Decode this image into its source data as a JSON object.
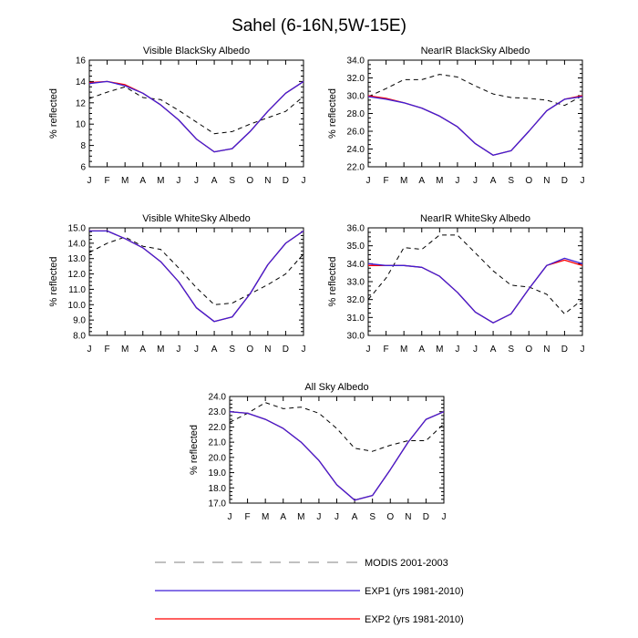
{
  "figure": {
    "title": "Sahel (6-16N,5W-15E)"
  },
  "colors": {
    "modis": "#000000",
    "exp1": "#3d1fd6",
    "exp2": "#ff0000",
    "legend_modis": "#9a9a9a",
    "legend_exp1": "#3d1fd6",
    "legend_exp2": "#ff0000"
  },
  "legend": {
    "items": [
      {
        "label": "MODIS 2001-2003",
        "style": "dashed",
        "series": "modis"
      },
      {
        "label": "EXP1 (yrs 1981-2010)",
        "style": "solid",
        "series": "exp1"
      },
      {
        "label": "EXP2 (yrs 1981-2010)",
        "style": "solid",
        "series": "exp2"
      }
    ]
  },
  "chart_data": [
    {
      "type": "line",
      "title": "Visible BlackSky Albedo",
      "xlabel": "",
      "ylabel": "% reflected",
      "categories": [
        "J",
        "F",
        "M",
        "A",
        "M",
        "J",
        "J",
        "A",
        "S",
        "O",
        "N",
        "D",
        "J"
      ],
      "ylim": [
        6,
        16
      ],
      "yticks": [
        "6",
        "8",
        "10",
        "12",
        "14",
        "16"
      ],
      "series": [
        {
          "name": "MODIS 2001-2003",
          "key": "modis",
          "style": "dashed",
          "values": [
            12.4,
            13.0,
            13.5,
            12.5,
            12.3,
            11.3,
            10.2,
            9.1,
            9.3,
            10.0,
            10.6,
            11.2,
            12.6
          ]
        },
        {
          "name": "EXP1 (yrs 1981-2010)",
          "key": "exp1",
          "style": "solid",
          "values": [
            13.8,
            14.0,
            13.6,
            12.9,
            11.8,
            10.4,
            8.6,
            7.4,
            7.7,
            9.3,
            11.2,
            12.9,
            14.0
          ]
        },
        {
          "name": "EXP2 (yrs 1981-2010)",
          "key": "exp2",
          "style": "solid",
          "values": [
            13.9,
            14.0,
            13.7,
            12.9,
            11.8,
            10.4,
            8.6,
            7.4,
            7.7,
            9.3,
            11.2,
            12.9,
            14.0
          ]
        }
      ]
    },
    {
      "type": "line",
      "title": "NearIR BlackSky Albedo",
      "xlabel": "",
      "ylabel": "% reflected",
      "categories": [
        "J",
        "F",
        "M",
        "A",
        "M",
        "J",
        "J",
        "A",
        "S",
        "O",
        "N",
        "D",
        "J"
      ],
      "ylim": [
        22,
        34
      ],
      "yticks": [
        "22.0",
        "24.0",
        "26.0",
        "28.0",
        "30.0",
        "32.0",
        "34.0"
      ],
      "series": [
        {
          "name": "MODIS 2001-2003",
          "key": "modis",
          "style": "dashed",
          "values": [
            29.9,
            30.8,
            31.8,
            31.8,
            32.4,
            32.1,
            31.1,
            30.2,
            29.8,
            29.7,
            29.5,
            28.9,
            30.0
          ]
        },
        {
          "name": "EXP1 (yrs 1981-2010)",
          "key": "exp1",
          "style": "solid",
          "values": [
            29.9,
            29.6,
            29.2,
            28.6,
            27.7,
            26.5,
            24.6,
            23.3,
            23.8,
            26.0,
            28.3,
            29.6,
            29.9
          ]
        },
        {
          "name": "EXP2 (yrs 1981-2010)",
          "key": "exp2",
          "style": "solid",
          "values": [
            30.0,
            29.7,
            29.2,
            28.6,
            27.7,
            26.5,
            24.6,
            23.3,
            23.8,
            26.0,
            28.3,
            29.6,
            30.0
          ]
        }
      ]
    },
    {
      "type": "line",
      "title": "Visible WhiteSky Albedo",
      "xlabel": "",
      "ylabel": "% reflected",
      "categories": [
        "J",
        "F",
        "M",
        "A",
        "M",
        "J",
        "J",
        "A",
        "S",
        "O",
        "N",
        "D",
        "J"
      ],
      "ylim": [
        8,
        15
      ],
      "yticks": [
        "8.0",
        "9.0",
        "10.0",
        "11.0",
        "12.0",
        "13.0",
        "14.0",
        "15.0"
      ],
      "series": [
        {
          "name": "MODIS 2001-2003",
          "key": "modis",
          "style": "dashed",
          "values": [
            13.4,
            14.0,
            14.4,
            13.8,
            13.6,
            12.4,
            11.1,
            10.0,
            10.1,
            10.7,
            11.3,
            12.0,
            13.3
          ]
        },
        {
          "name": "EXP1 (yrs 1981-2010)",
          "key": "exp1",
          "style": "solid",
          "values": [
            14.8,
            14.8,
            14.3,
            13.7,
            12.8,
            11.5,
            9.8,
            8.9,
            9.2,
            10.7,
            12.6,
            14.0,
            14.8
          ]
        },
        {
          "name": "EXP2 (yrs 1981-2010)",
          "key": "exp2",
          "style": "solid",
          "values": [
            14.8,
            14.8,
            14.3,
            13.7,
            12.8,
            11.5,
            9.8,
            8.9,
            9.2,
            10.7,
            12.6,
            14.0,
            14.8
          ]
        }
      ]
    },
    {
      "type": "line",
      "title": "NearIR WhiteSky Albedo",
      "xlabel": "",
      "ylabel": "% reflected",
      "categories": [
        "J",
        "F",
        "M",
        "A",
        "M",
        "J",
        "J",
        "A",
        "S",
        "O",
        "N",
        "D",
        "J"
      ],
      "ylim": [
        30,
        36
      ],
      "yticks": [
        "30.0",
        "31.0",
        "32.0",
        "33.0",
        "34.0",
        "35.0",
        "36.0"
      ],
      "series": [
        {
          "name": "MODIS 2001-2003",
          "key": "modis",
          "style": "dashed",
          "values": [
            32.0,
            33.2,
            34.9,
            34.8,
            35.6,
            35.6,
            34.6,
            33.6,
            32.8,
            32.7,
            32.3,
            31.2,
            32.0
          ]
        },
        {
          "name": "EXP1 (yrs 1981-2010)",
          "key": "exp1",
          "style": "solid",
          "values": [
            34.0,
            33.9,
            33.9,
            33.8,
            33.3,
            32.4,
            31.3,
            30.7,
            31.2,
            32.6,
            33.9,
            34.3,
            34.0
          ]
        },
        {
          "name": "EXP2 (yrs 1981-2010)",
          "key": "exp2",
          "style": "solid",
          "values": [
            33.9,
            33.9,
            33.9,
            33.8,
            33.3,
            32.4,
            31.3,
            30.7,
            31.2,
            32.6,
            33.9,
            34.2,
            33.9
          ]
        }
      ]
    },
    {
      "type": "line",
      "title": "All Sky Albedo",
      "xlabel": "",
      "ylabel": "% reflected",
      "categories": [
        "J",
        "F",
        "M",
        "A",
        "M",
        "J",
        "J",
        "A",
        "S",
        "O",
        "N",
        "D",
        "J"
      ],
      "ylim": [
        17,
        24
      ],
      "yticks": [
        "17.0",
        "18.0",
        "19.0",
        "20.0",
        "21.0",
        "22.0",
        "23.0",
        "24.0"
      ],
      "series": [
        {
          "name": "MODIS 2001-2003",
          "key": "modis",
          "style": "dashed",
          "values": [
            22.3,
            22.9,
            23.6,
            23.2,
            23.3,
            22.9,
            21.9,
            20.6,
            20.4,
            20.8,
            21.1,
            21.1,
            22.2
          ]
        },
        {
          "name": "EXP1 (yrs 1981-2010)",
          "key": "exp1",
          "style": "solid",
          "values": [
            23.0,
            22.9,
            22.5,
            21.9,
            21.0,
            19.8,
            18.2,
            17.2,
            17.5,
            19.2,
            21.0,
            22.5,
            23.0
          ]
        },
        {
          "name": "EXP2 (yrs 1981-2010)",
          "key": "exp2",
          "style": "solid",
          "values": [
            23.0,
            22.9,
            22.5,
            21.9,
            21.0,
            19.8,
            18.2,
            17.2,
            17.5,
            19.2,
            21.0,
            22.5,
            23.0
          ]
        }
      ]
    }
  ]
}
